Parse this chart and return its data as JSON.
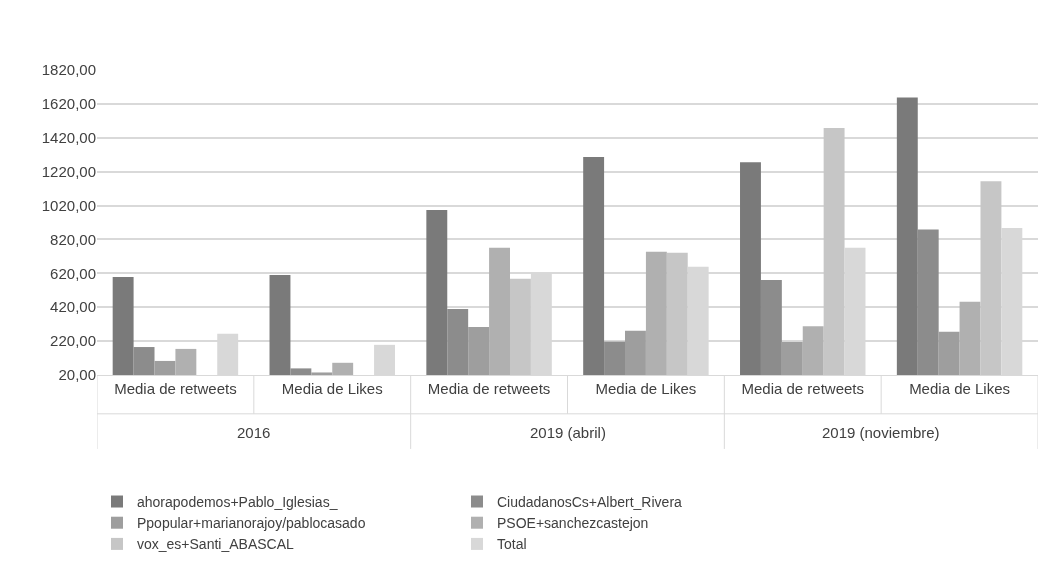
{
  "chart_data": {
    "type": "bar",
    "categories": [
      "Media de retweets",
      "Media de Likes",
      "Media de retweets",
      "Media de Likes",
      "Media de retweets",
      "Media de Likes"
    ],
    "annotations": [
      "2016",
      "2019 (abril)",
      "2019 (noviembre)"
    ],
    "series": [
      {
        "name": "ahorapodemos+Pablo_Iglesias_",
        "color": "#7a7a7a",
        "values": [
          599,
          610,
          994,
          1306,
          1276,
          1657
        ]
      },
      {
        "name": "CiudadanosCs+Albert_Rivera",
        "color": "#8c8c8c",
        "values": [
          185,
          59,
          409,
          217,
          580,
          878
        ]
      },
      {
        "name": "Ppopular+marianorajoy/pablocasado",
        "color": "#9e9e9e",
        "values": [
          103,
          35,
          303,
          281,
          215,
          275
        ]
      },
      {
        "name": "PSOE+sanchezcastejon",
        "color": "#b0b0b0",
        "values": [
          174,
          92,
          771,
          747,
          308,
          453
        ]
      },
      {
        "name": "vox_es+Santi_ABASCAL",
        "color": "#c6c6c6",
        "values": [
          null,
          null,
          588,
          742,
          1477,
          1164
        ]
      },
      {
        "name": "Total",
        "color": "#d8d8d8",
        "values": [
          264,
          198,
          617,
          659,
          771,
          887
        ]
      }
    ],
    "ylim": [
      20,
      1820
    ],
    "yticks": [
      {
        "value": 20,
        "label": "20,00"
      },
      {
        "value": 220,
        "label": "220,00"
      },
      {
        "value": 420,
        "label": "420,00"
      },
      {
        "value": 620,
        "label": "620,00"
      },
      {
        "value": 820,
        "label": "820,00"
      },
      {
        "value": 1020,
        "label": "1020,00"
      },
      {
        "value": 1220,
        "label": "1220,00"
      },
      {
        "value": 1420,
        "label": "1420,00"
      },
      {
        "value": 1620,
        "label": "1620,00"
      },
      {
        "value": 1820,
        "label": "1820,00"
      }
    ],
    "grid": "y",
    "legend": "bottom"
  }
}
